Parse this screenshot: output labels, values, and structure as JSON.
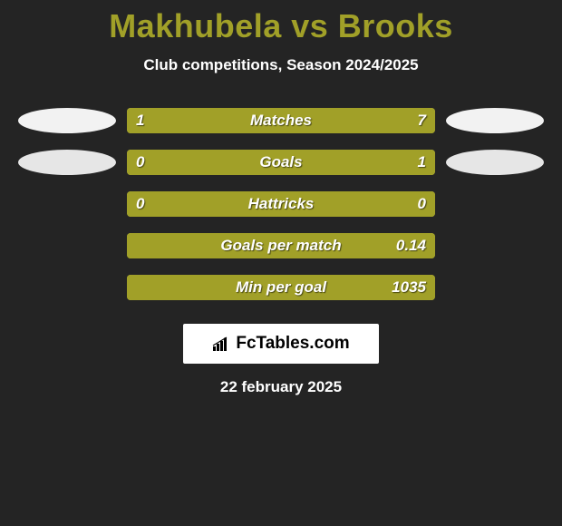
{
  "title": "Makhubela vs Brooks",
  "subtitle": "Club competitions, Season 2024/2025",
  "colors": {
    "background": "#242424",
    "accent": "#a1a028",
    "bar_bg": "#c3c241",
    "oval_light": "#f2f2f2",
    "oval_alt": "#e6e6e6",
    "text": "#ffffff"
  },
  "rows": [
    {
      "label": "Matches",
      "left_value": "1",
      "right_value": "7",
      "left_pct": 18,
      "right_pct": 82,
      "show_ovals": true
    },
    {
      "label": "Goals",
      "left_value": "0",
      "right_value": "1",
      "left_pct": 10,
      "right_pct": 90,
      "show_ovals": true
    },
    {
      "label": "Hattricks",
      "left_value": "0",
      "right_value": "0",
      "left_pct": 100,
      "right_pct": 0,
      "show_ovals": false
    },
    {
      "label": "Goals per match",
      "left_value": "",
      "right_value": "0.14",
      "left_pct": 0,
      "right_pct": 100,
      "show_ovals": false
    },
    {
      "label": "Min per goal",
      "left_value": "",
      "right_value": "1035",
      "left_pct": 0,
      "right_pct": 100,
      "show_ovals": false
    }
  ],
  "logo": "FcTables.com",
  "date": "22 february 2025"
}
